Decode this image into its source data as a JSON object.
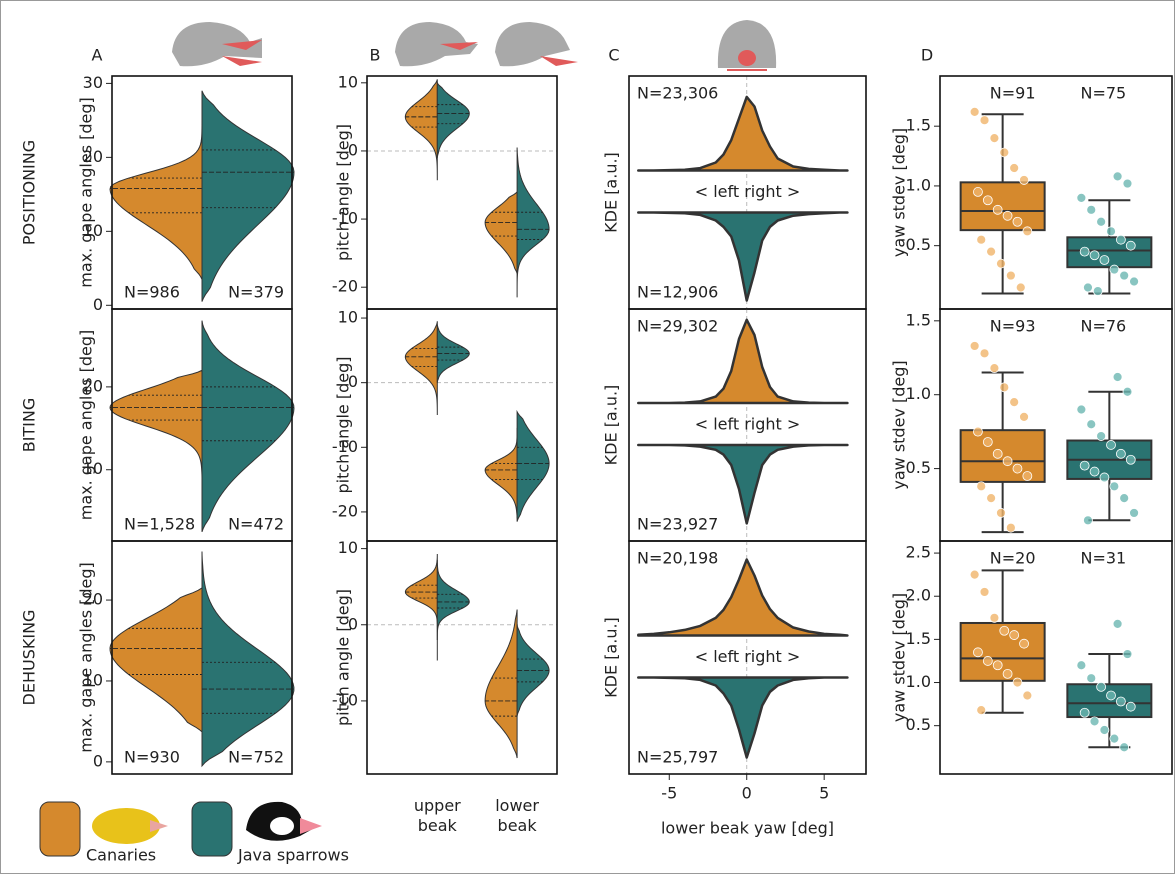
{
  "panels": [
    "A",
    "B",
    "C",
    "D"
  ],
  "rows": [
    "POSITIONING",
    "BITING",
    "DEHUSKING"
  ],
  "legend": [
    {
      "name": "Canaries",
      "color": "#d5892d"
    },
    {
      "name": "Java sparrows",
      "color": "#2a7371"
    }
  ],
  "chart_data": [
    {
      "type": "violin",
      "ylabel": "max. gape angles [deg]",
      "ylim": [
        -0.5,
        31
      ],
      "yticks": [
        0,
        10,
        20,
        30
      ],
      "series": [
        {
          "color": "#d5892d",
          "n_label": "N=986",
          "min": [
            3.5
          ],
          "q1": [
            12.5
          ],
          "median": [
            15.8
          ],
          "q3": [
            17.2
          ],
          "max": [
            25
          ]
        },
        {
          "color": "#2a7371",
          "n_label": "N=379",
          "min": [
            0.5
          ],
          "q1": [
            13.2
          ],
          "median": [
            18
          ],
          "q3": [
            21
          ],
          "max": [
            29
          ]
        }
      ]
    },
    {
      "type": "violin",
      "ylabel": "pitch angle [deg]",
      "ylim": [
        -23.2,
        11
      ],
      "yticks": [
        -20,
        -10,
        0,
        10
      ],
      "hline": 0,
      "series": [
        {
          "color": "#d5892d",
          "min": [
            -4.3,
            -18
          ],
          "q1": [
            3.5,
            -12.5
          ],
          "median": [
            5,
            -10.5
          ],
          "q3": [
            6.5,
            -9
          ],
          "max": [
            10.5,
            -6
          ]
        },
        {
          "color": "#2a7371",
          "min": [
            -1,
            -21.5
          ],
          "q1": [
            4,
            -13
          ],
          "median": [
            5.5,
            -11.5
          ],
          "q3": [
            6.8,
            -9
          ],
          "max": [
            10,
            0.5
          ]
        }
      ]
    },
    {
      "type": "kde",
      "ylabel": "KDE [a.u.]",
      "annotation": "< left right >",
      "xlim": [
        -7.6,
        7.7
      ],
      "vline": 0,
      "x": [
        -7,
        -6,
        -5,
        -4,
        -3,
        -2,
        -1.5,
        -1,
        -0.5,
        0,
        0.5,
        1,
        1.5,
        2,
        3,
        4,
        5,
        6,
        6.5
      ],
      "series": [
        {
          "color": "#d5892d",
          "n_label": "N=23,306",
          "values": [
            0,
            0,
            0.005,
            0.01,
            0.03,
            0.1,
            0.2,
            0.38,
            0.65,
            0.92,
            0.8,
            0.5,
            0.3,
            0.15,
            0.05,
            0.02,
            0.01,
            0,
            0
          ]
        },
        {
          "color": "#2a7371",
          "n_label": "N=12,906",
          "values": [
            0,
            0,
            0.005,
            0.01,
            0.03,
            0.1,
            0.18,
            0.3,
            0.6,
            1.1,
            0.75,
            0.35,
            0.18,
            0.1,
            0.04,
            0.02,
            0.01,
            0,
            0
          ]
        }
      ]
    },
    {
      "type": "box",
      "ylabel": "yaw stdev [deg]",
      "ylim": [
        -0.03,
        1.92
      ],
      "yticks": [
        0.5,
        {
          "value": 1,
          "label": "1.0"
        },
        1.5
      ],
      "series": [
        {
          "color": "#d5892d",
          "point_color": "#f0b46a",
          "n_label": "N=91",
          "whislo": 0.1,
          "q1": 0.63,
          "median": 0.79,
          "q3": 1.03,
          "whishi": 1.6,
          "points": [
            1.62,
            1.55,
            1.4,
            1.28,
            1.15,
            1.05,
            0.95,
            0.88,
            0.8,
            0.75,
            0.7,
            0.62,
            0.55,
            0.45,
            0.35,
            0.25,
            0.15
          ]
        },
        {
          "color": "#2a7371",
          "point_color": "#6cb7b2",
          "n_label": "N=75",
          "whislo": 0.1,
          "q1": 0.32,
          "median": 0.46,
          "q3": 0.57,
          "whishi": 0.88,
          "points": [
            1.08,
            1.02,
            0.9,
            0.8,
            0.7,
            0.62,
            0.55,
            0.5,
            0.45,
            0.42,
            0.38,
            0.3,
            0.25,
            0.2,
            0.15,
            0.12
          ]
        }
      ]
    },
    {
      "type": "violin",
      "ylabel": "max. gape angles [deg]",
      "ylim": [
        1.4,
        29.4
      ],
      "yticks": [
        10,
        20
      ],
      "series": [
        {
          "color": "#d5892d",
          "n_label": "N=1,528",
          "min": [
            9
          ],
          "q1": [
            16
          ],
          "median": [
            17.5
          ],
          "q3": [
            19
          ],
          "max": [
            22
          ]
        },
        {
          "color": "#2a7371",
          "n_label": "N=472",
          "min": [
            2.5
          ],
          "q1": [
            13.5
          ],
          "median": [
            17.5
          ],
          "q3": [
            20
          ],
          "max": [
            28
          ]
        }
      ]
    },
    {
      "type": "violin",
      "ylabel": "pitch angle [deg]",
      "ylim": [
        -24.5,
        11.4
      ],
      "yticks": [
        -20,
        -10,
        0,
        10
      ],
      "hline": 0,
      "series": [
        {
          "color": "#d5892d",
          "min": [
            -5,
            -21
          ],
          "q1": [
            2.5,
            -15
          ],
          "median": [
            4,
            -13.5
          ],
          "q3": [
            5.3,
            -12.5
          ],
          "max": [
            9.5,
            -7
          ]
        },
        {
          "color": "#2a7371",
          "min": [
            0,
            -21.5
          ],
          "q1": [
            3.5,
            -15
          ],
          "median": [
            4.5,
            -12.5
          ],
          "q3": [
            5.5,
            -10
          ],
          "max": [
            9,
            -4.5
          ]
        }
      ]
    },
    {
      "type": "kde",
      "ylabel": "KDE [a.u.]",
      "annotation": "< left right >",
      "xlim": [
        -7.6,
        7.7
      ],
      "vline": 0,
      "x": [
        -7,
        -6,
        -5,
        -4,
        -3,
        -2,
        -1.5,
        -1,
        -0.5,
        0,
        0.5,
        1,
        1.5,
        2,
        3,
        4,
        5,
        6,
        6.5
      ],
      "series": [
        {
          "color": "#d5892d",
          "n_label": "N=29,302",
          "values": [
            0,
            0,
            0,
            0.005,
            0.02,
            0.08,
            0.18,
            0.4,
            0.8,
            1.04,
            0.85,
            0.45,
            0.2,
            0.08,
            0.02,
            0.005,
            0,
            0,
            0
          ]
        },
        {
          "color": "#2a7371",
          "n_label": "N=23,927",
          "values": [
            0,
            0,
            0,
            0.005,
            0.02,
            0.06,
            0.12,
            0.25,
            0.55,
            0.98,
            0.6,
            0.25,
            0.12,
            0.06,
            0.02,
            0.005,
            0,
            0,
            0
          ]
        }
      ]
    },
    {
      "type": "box",
      "ylabel": "yaw stdev [deg]",
      "ylim": [
        0.01,
        1.58
      ],
      "yticks": [
        0.5,
        {
          "value": 1,
          "label": "1.0"
        },
        1.5
      ],
      "series": [
        {
          "color": "#d5892d",
          "point_color": "#f0b46a",
          "n_label": "N=93",
          "whislo": 0.07,
          "q1": 0.41,
          "median": 0.55,
          "q3": 0.76,
          "whishi": 1.15,
          "points": [
            1.33,
            1.28,
            1.18,
            1.05,
            0.95,
            0.85,
            0.75,
            0.68,
            0.6,
            0.55,
            0.5,
            0.45,
            0.38,
            0.3,
            0.2,
            0.1
          ]
        },
        {
          "color": "#2a7371",
          "point_color": "#6cb7b2",
          "n_label": "N=76",
          "whislo": 0.15,
          "q1": 0.43,
          "median": 0.56,
          "q3": 0.69,
          "whishi": 1.02,
          "points": [
            1.12,
            1.02,
            0.9,
            0.8,
            0.72,
            0.66,
            0.6,
            0.56,
            0.52,
            0.48,
            0.44,
            0.38,
            0.3,
            0.2,
            0.15
          ]
        }
      ]
    },
    {
      "type": "violin",
      "ylabel": "max. gape angles [deg]",
      "ylim": [
        -1.5,
        27.3
      ],
      "yticks": [
        0,
        10,
        20
      ],
      "series": [
        {
          "color": "#d5892d",
          "n_label": "N=930",
          "min": [
            3.7
          ],
          "q1": [
            10.8
          ],
          "median": [
            14
          ],
          "q3": [
            16.5
          ],
          "max": [
            21.5
          ]
        },
        {
          "color": "#2a7371",
          "n_label": "N=752",
          "min": [
            -0.5
          ],
          "q1": [
            6
          ],
          "median": [
            9
          ],
          "q3": [
            12.3
          ],
          "max": [
            26
          ]
        }
      ]
    },
    {
      "type": "violin",
      "ylabel": "pitch angle [deg]",
      "ylim": [
        -19.6,
        11
      ],
      "yticks": [
        -10,
        0,
        10
      ],
      "hline": 0,
      "categories": [
        "upper\nbeak",
        "lower\nbeak"
      ],
      "series": [
        {
          "color": "#d5892d",
          "min": [
            -4.7,
            -17.5
          ],
          "q1": [
            3.5,
            -12
          ],
          "median": [
            4.3,
            -10
          ],
          "q3": [
            5.2,
            -7
          ],
          "max": [
            9.3,
            2
          ]
        },
        {
          "color": "#2a7371",
          "min": [
            -2,
            -12
          ],
          "q1": [
            2.2,
            -7.5
          ],
          "median": [
            3,
            -6
          ],
          "q3": [
            4,
            -4.5
          ],
          "max": [
            8.5,
            0
          ]
        }
      ]
    },
    {
      "type": "kde",
      "ylabel": "KDE [a.u.]",
      "annotation": "< left right >",
      "xlim": [
        -7.6,
        7.7
      ],
      "vline": 0,
      "xticks": [
        -5,
        0,
        5
      ],
      "xlabel": "lower beak yaw [deg]",
      "x": [
        -7,
        -6,
        -5,
        -4,
        -3,
        -2,
        -1.5,
        -1,
        -0.5,
        0,
        0.5,
        1,
        1.5,
        2,
        3,
        4,
        5,
        6,
        6.5
      ],
      "series": [
        {
          "color": "#d5892d",
          "n_label": "N=20,198",
          "values": [
            0.01,
            0.02,
            0.04,
            0.07,
            0.12,
            0.22,
            0.32,
            0.48,
            0.7,
            0.95,
            0.75,
            0.5,
            0.33,
            0.22,
            0.1,
            0.05,
            0.02,
            0.01,
            0
          ]
        },
        {
          "color": "#2a7371",
          "n_label": "N=25,797",
          "values": [
            0,
            0,
            0.005,
            0.01,
            0.03,
            0.1,
            0.2,
            0.35,
            0.65,
            1.0,
            0.7,
            0.35,
            0.18,
            0.1,
            0.03,
            0.01,
            0,
            0,
            0
          ]
        }
      ]
    },
    {
      "type": "box",
      "ylabel": "yaw stdev [deg]",
      "ylim": [
        -0.06,
        2.64
      ],
      "yticks": [
        0.5,
        {
          "value": 1,
          "label": "1.0"
        },
        1.5,
        {
          "value": 2,
          "label": "2.0"
        },
        2.5
      ],
      "series": [
        {
          "color": "#d5892d",
          "point_color": "#f0b46a",
          "n_label": "N=20",
          "whislo": 0.65,
          "q1": 1.02,
          "median": 1.28,
          "q3": 1.69,
          "whishi": 2.3,
          "points": [
            2.25,
            2.05,
            1.75,
            1.6,
            1.55,
            1.45,
            1.35,
            1.25,
            1.2,
            1.1,
            1.0,
            0.85,
            0.68
          ]
        },
        {
          "color": "#2a7371",
          "point_color": "#6cb7b2",
          "n_label": "N=31",
          "whislo": 0.25,
          "q1": 0.6,
          "median": 0.76,
          "q3": 0.98,
          "whishi": 1.33,
          "points": [
            1.68,
            1.33,
            1.2,
            1.05,
            0.95,
            0.85,
            0.78,
            0.72,
            0.65,
            0.55,
            0.45,
            0.35,
            0.25
          ]
        }
      ]
    }
  ]
}
